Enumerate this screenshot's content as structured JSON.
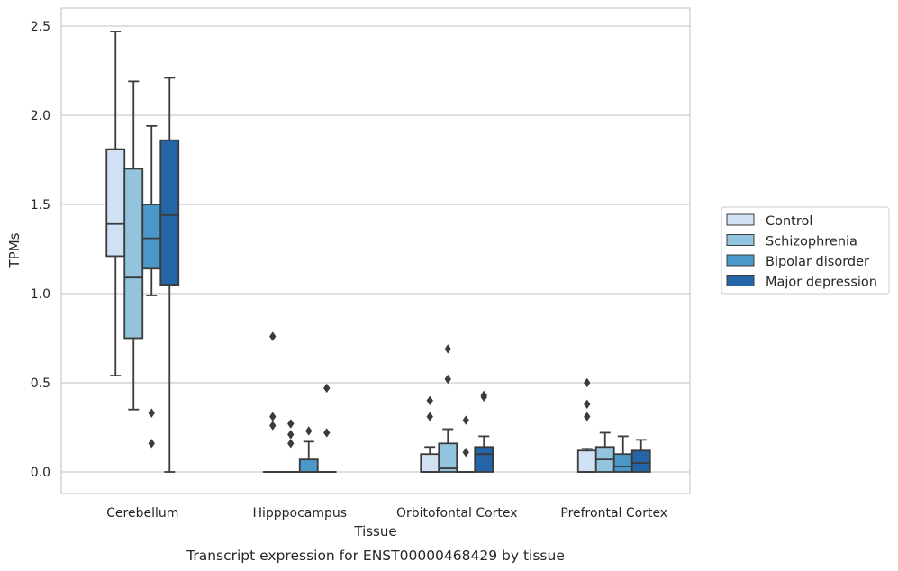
{
  "chart_data": {
    "type": "box",
    "caption": "Transcript expression for ENST00000468429 by tissue",
    "xlabel": "Tissue",
    "ylabel": "TPMs",
    "ylim": [
      -0.12,
      2.6
    ],
    "yticks": [
      "0.0",
      "0.5",
      "1.0",
      "1.5",
      "2.0",
      "2.5"
    ],
    "grid": true,
    "legend_position": "right",
    "categories": [
      "Cerebellum",
      "Hipppocampus",
      "Orbitofontal Cortex",
      "Prefrontal Cortex"
    ],
    "series": [
      {
        "name": "Control",
        "color": "#cfe1f2",
        "boxes": [
          {
            "whislo": 0.54,
            "q1": 1.21,
            "med": 1.39,
            "q3": 1.81,
            "whishi": 2.47,
            "fliers": []
          },
          {
            "whislo": 0,
            "q1": 0,
            "med": 0,
            "q3": 0,
            "whishi": 0,
            "fliers": [
              0.26,
              0.31,
              0.76
            ]
          },
          {
            "whislo": 0,
            "q1": 0,
            "med": 0,
            "q3": 0.1,
            "whishi": 0.14,
            "fliers": [
              0.31,
              0.4
            ]
          },
          {
            "whislo": 0,
            "q1": 0,
            "med": 0,
            "q3": 0.12,
            "whishi": 0.13,
            "fliers": [
              0.31,
              0.38,
              0.5
            ]
          }
        ]
      },
      {
        "name": "Schizophrenia",
        "color": "#93c4de",
        "boxes": [
          {
            "whislo": 0.35,
            "q1": 0.75,
            "med": 1.09,
            "q3": 1.7,
            "whishi": 2.19,
            "fliers": []
          },
          {
            "whislo": 0,
            "q1": 0,
            "med": 0,
            "q3": 0,
            "whishi": 0,
            "fliers": [
              0.16,
              0.21,
              0.27
            ]
          },
          {
            "whislo": 0,
            "q1": 0,
            "med": 0.02,
            "q3": 0.16,
            "whishi": 0.24,
            "fliers": [
              0.52,
              0.69
            ]
          },
          {
            "whislo": 0,
            "q1": 0,
            "med": 0.07,
            "q3": 0.14,
            "whishi": 0.22,
            "fliers": []
          }
        ]
      },
      {
        "name": "Bipolar disorder",
        "color": "#4a98c9",
        "boxes": [
          {
            "whislo": 0.99,
            "q1": 1.14,
            "med": 1.31,
            "q3": 1.5,
            "whishi": 1.94,
            "fliers": [
              0.16,
              0.33
            ]
          },
          {
            "whislo": 0,
            "q1": 0,
            "med": 0,
            "q3": 0.07,
            "whishi": 0.17,
            "fliers": [
              0.23
            ]
          },
          {
            "whislo": 0,
            "q1": 0,
            "med": 0,
            "q3": 0,
            "whishi": 0,
            "fliers": [
              0.11,
              0.29
            ]
          },
          {
            "whislo": 0,
            "q1": 0,
            "med": 0.03,
            "q3": 0.1,
            "whishi": 0.2,
            "fliers": []
          }
        ]
      },
      {
        "name": "Major depression",
        "color": "#2465a8",
        "boxes": [
          {
            "whislo": 0,
            "q1": 1.05,
            "med": 1.44,
            "q3": 1.86,
            "whishi": 2.21,
            "fliers": []
          },
          {
            "whislo": 0,
            "q1": 0,
            "med": 0,
            "q3": 0,
            "whishi": 0,
            "fliers": [
              0.22,
              0.47
            ]
          },
          {
            "whislo": 0,
            "q1": 0,
            "med": 0.1,
            "q3": 0.14,
            "whishi": 0.2,
            "fliers": [
              0.42,
              0.43
            ]
          },
          {
            "whislo": 0,
            "q1": 0,
            "med": 0.05,
            "q3": 0.12,
            "whishi": 0.18,
            "fliers": []
          }
        ]
      }
    ]
  }
}
